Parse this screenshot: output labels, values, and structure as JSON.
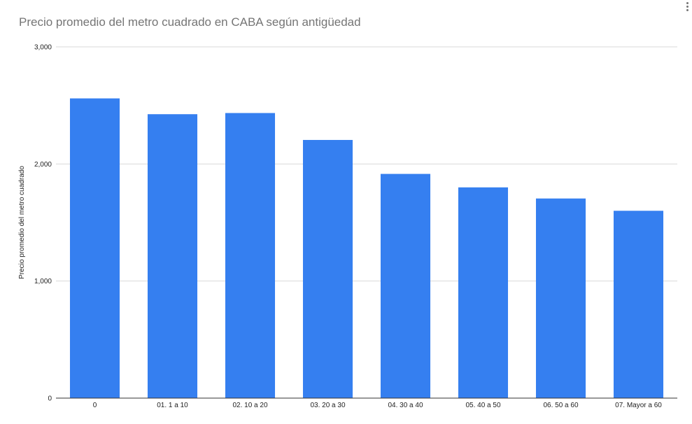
{
  "chart_data": {
    "type": "bar",
    "title": "Precio promedio del metro cuadrado en CABA según antigüedad",
    "xlabel": "",
    "ylabel": "Precio promedio del metro cuadrado",
    "categories": [
      "0",
      "01. 1 a 10",
      "02. 10 a 20",
      "03. 20 a 30",
      "04. 30 a 40",
      "05. 40 a 50",
      "06. 50 a 60",
      "07. Mayor a 60"
    ],
    "values": [
      2560,
      2425,
      2435,
      2205,
      1915,
      1800,
      1705,
      1600
    ],
    "ylim": [
      0,
      3000
    ],
    "yticks": [
      0,
      1000,
      2000,
      3000
    ],
    "ytick_labels": [
      "0",
      "1,000",
      "2,000",
      "3,000"
    ],
    "grid": true,
    "legend": "none",
    "colors": {
      "bar": "#357ff0",
      "grid": "#d9d9d9",
      "axis": "#333333",
      "title": "#757575"
    }
  },
  "menu": {
    "icon": "more-vert-icon"
  }
}
